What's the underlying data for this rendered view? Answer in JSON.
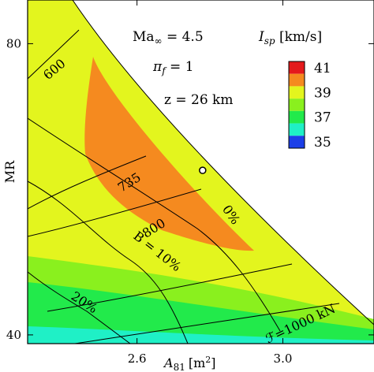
{
  "chart_data": {
    "type": "heatmap",
    "title": "",
    "xlabel": "A_81 [m^2]",
    "xlabel_main": "A",
    "xlabel_sub": "81",
    "xlabel_unit": "[m",
    "xlabel_unit_sup": "2",
    "xlabel_unit_end": "]",
    "ylabel": "MR",
    "xlim": [
      2.3,
      3.25
    ],
    "ylim": [
      38.8,
      86
    ],
    "x_ticks": [
      2.6,
      3.0
    ],
    "x_tick_labels": [
      "2.6",
      "3.0"
    ],
    "y_ticks": [
      40,
      80
    ],
    "y_tick_labels": [
      "40",
      "80"
    ],
    "grid": false,
    "annotations": {
      "mach": "Ma",
      "mach_sub": "∞",
      "mach_value": " = 4.5",
      "pi": "π",
      "pi_sub": "f",
      "pi_value": " = 1",
      "altitude": "z = 26 km"
    },
    "colorbar": {
      "title": "I",
      "title_sub": "sp",
      "title_unit": " [km/s]",
      "ticks": [
        41,
        39,
        37,
        35
      ],
      "tick_labels": [
        "41",
        "39",
        "37",
        "35"
      ],
      "bands": [
        {
          "value": 41,
          "color": "#e41a1c"
        },
        {
          "value": 40,
          "color": "#f58a1f"
        },
        {
          "value": 39,
          "color": "#e3f51e"
        },
        {
          "value": 38,
          "color": "#8af01e"
        },
        {
          "value": 37,
          "color": "#22ea4b"
        },
        {
          "value": 36,
          "color": "#1ff0c6"
        },
        {
          "value": 35,
          "color": "#1c3fe8"
        }
      ]
    },
    "isp_regions": [
      {
        "isp": 40,
        "color": "#f58a1f"
      },
      {
        "isp": 39,
        "color": "#e3f51e"
      },
      {
        "isp": 38,
        "color": "#8af01e"
      },
      {
        "isp": 37,
        "color": "#22ea4b"
      },
      {
        "isp": 36,
        "color": "#1ff0c6"
      }
    ],
    "contours": [
      {
        "family": "thrust",
        "label": "600"
      },
      {
        "family": "thrust",
        "label": "735"
      },
      {
        "family": "thrust",
        "label": "800"
      },
      {
        "family": "thrust",
        "label": "ℱ=1000 kN"
      },
      {
        "family": "B",
        "label": "0%"
      },
      {
        "family": "B",
        "label": "B = 10%"
      },
      {
        "family": "B",
        "label": "20%"
      }
    ],
    "marker": {
      "x": 2.78,
      "y": 62.6
    }
  }
}
